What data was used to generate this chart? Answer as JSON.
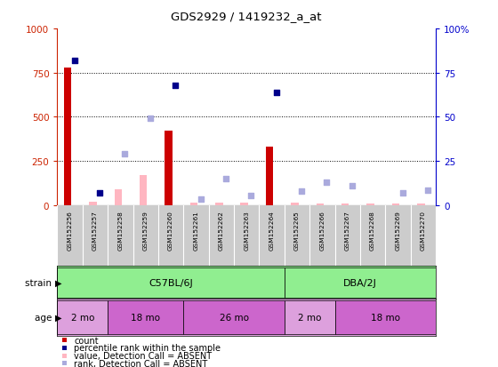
{
  "title": "GDS2929 / 1419232_a_at",
  "samples": [
    "GSM152256",
    "GSM152257",
    "GSM152258",
    "GSM152259",
    "GSM152260",
    "GSM152261",
    "GSM152262",
    "GSM152263",
    "GSM152264",
    "GSM152265",
    "GSM152266",
    "GSM152267",
    "GSM152268",
    "GSM152269",
    "GSM152270"
  ],
  "count_present": [
    780,
    0,
    0,
    0,
    420,
    0,
    0,
    0,
    330,
    0,
    0,
    0,
    0,
    0,
    0
  ],
  "count_absent": [
    0,
    20,
    90,
    170,
    0,
    15,
    15,
    15,
    0,
    15,
    10,
    10,
    10,
    10,
    10
  ],
  "rank_present": [
    82,
    7,
    0,
    0,
    68,
    0,
    0,
    0,
    64,
    0,
    0,
    0,
    0,
    0,
    0
  ],
  "rank_absent": [
    0,
    0,
    29,
    49,
    0,
    3.5,
    15,
    5.5,
    0,
    8,
    13,
    11,
    0,
    7,
    8.5
  ],
  "bar_color_present": "#CC0000",
  "bar_color_absent": "#FFB6C1",
  "rank_color_present": "#00008B",
  "rank_color_absent": "#AAAADD",
  "bg_color": "#FFFFFF",
  "axis_color_left": "#CC2200",
  "axis_color_right": "#0000CC",
  "strain_color": "#90EE90",
  "age_color_light": "#DDA0DD",
  "age_color_dark": "#CC66CC",
  "sample_bg": "#CCCCCC"
}
